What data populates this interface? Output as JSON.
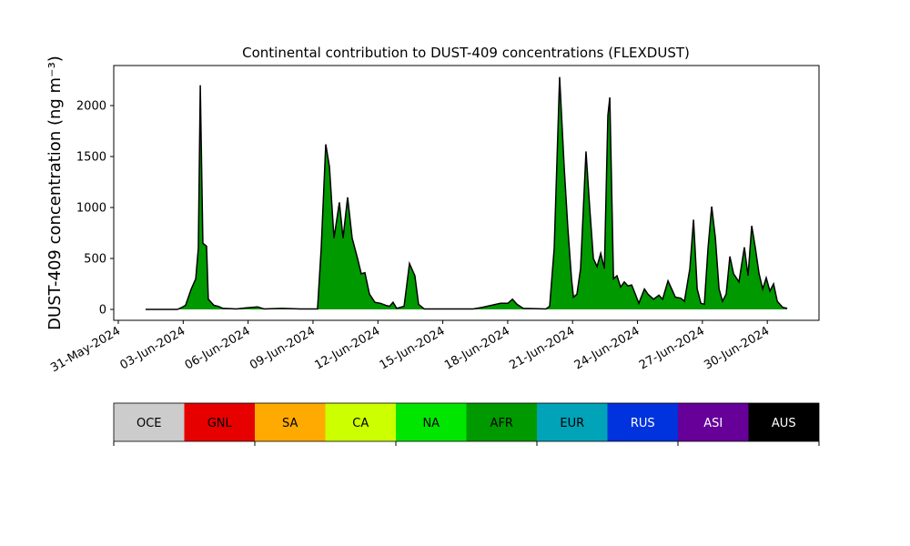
{
  "chart_data": {
    "type": "area",
    "title": "Continental contribution to DUST-409 concentrations (FLEXDUST)",
    "ylabel": "DUST-409 concentration (ng m⁻³)",
    "x": [
      1.26,
      2.73,
      2.94,
      3.11,
      3.37,
      3.58,
      3.7,
      3.79,
      3.91,
      4.08,
      4.16,
      4.42,
      4.63,
      4.84,
      5.47,
      5.89,
      6.44,
      6.73,
      7.57,
      8.41,
      9.21,
      9.38,
      9.59,
      9.76,
      9.97,
      10.22,
      10.39,
      10.6,
      10.81,
      11.06,
      11.23,
      11.4,
      11.61,
      11.86,
      12.12,
      12.37,
      12.54,
      12.7,
      12.87,
      13.21,
      13.46,
      13.71,
      13.88,
      14.14,
      15.14,
      16.41,
      16.83,
      17.25,
      17.67,
      18.01,
      18.22,
      18.43,
      18.72,
      19.77,
      19.94,
      20.15,
      20.4,
      20.61,
      20.78,
      20.95,
      21.04,
      21.2,
      21.37,
      21.62,
      21.79,
      21.96,
      22.13,
      22.3,
      22.47,
      22.63,
      22.72,
      22.89,
      23.05,
      23.22,
      23.39,
      23.56,
      23.73,
      23.9,
      24.06,
      24.32,
      24.48,
      24.74,
      24.99,
      25.16,
      25.41,
      25.58,
      25.75,
      26.0,
      26.17,
      26.42,
      26.59,
      26.76,
      26.93,
      27.09,
      27.26,
      27.43,
      27.6,
      27.77,
      27.93,
      28.1,
      28.27,
      28.44,
      28.69,
      28.94,
      29.11,
      29.28,
      29.45,
      29.62,
      29.79,
      29.95,
      30.12,
      30.29,
      30.46,
      30.71,
      30.92
    ],
    "series": [
      {
        "name": "AFR",
        "color": "#009900",
        "values": [
          0,
          0,
          20,
          40,
          200,
          300,
          600,
          2200,
          650,
          620,
          100,
          40,
          30,
          10,
          5,
          15,
          25,
          5,
          10,
          5,
          5,
          600,
          1620,
          1400,
          700,
          1050,
          700,
          1100,
          700,
          500,
          350,
          360,
          150,
          70,
          60,
          40,
          30,
          70,
          10,
          30,
          450,
          330,
          50,
          5,
          5,
          5,
          20,
          40,
          60,
          60,
          100,
          50,
          10,
          5,
          30,
          600,
          2280,
          1400,
          800,
          300,
          120,
          150,
          400,
          1550,
          1000,
          500,
          420,
          550,
          400,
          1900,
          2080,
          300,
          330,
          220,
          270,
          230,
          240,
          150,
          60,
          200,
          150,
          100,
          140,
          100,
          280,
          200,
          120,
          110,
          80,
          400,
          880,
          200,
          60,
          50,
          600,
          1010,
          700,
          200,
          80,
          150,
          520,
          350,
          270,
          610,
          330,
          820,
          600,
          350,
          200,
          310,
          180,
          250,
          80,
          20,
          10
        ]
      }
    ],
    "edge_color": "#000000",
    "xlim": [
      -0.21,
      32.39
    ],
    "xticks": [
      {
        "value": 0,
        "label": "31-May-2024"
      },
      {
        "value": 3,
        "label": "03-Jun-2024"
      },
      {
        "value": 6,
        "label": "06-Jun-2024"
      },
      {
        "value": 9,
        "label": "09-Jun-2024"
      },
      {
        "value": 12,
        "label": "12-Jun-2024"
      },
      {
        "value": 15,
        "label": "15-Jun-2024"
      },
      {
        "value": 18,
        "label": "18-Jun-2024"
      },
      {
        "value": 21,
        "label": "21-Jun-2024"
      },
      {
        "value": 24,
        "label": "24-Jun-2024"
      },
      {
        "value": 27,
        "label": "27-Jun-2024"
      },
      {
        "value": 30,
        "label": "30-Jun-2024"
      }
    ],
    "ylim": [
      -107,
      2393
    ],
    "yticks": [
      0,
      500,
      1000,
      1500,
      2000
    ],
    "colorbar": {
      "labels": [
        "OCE",
        "GNL",
        "SA",
        "CA",
        "NA",
        "AFR",
        "EUR",
        "RUS",
        "ASI",
        "AUS"
      ],
      "colors": [
        "#cccccc",
        "#e60000",
        "#ffaa00",
        "#ccff00",
        "#00e600",
        "#009900",
        "#00a3b8",
        "#0033dd",
        "#660099",
        "#000000"
      ]
    }
  }
}
